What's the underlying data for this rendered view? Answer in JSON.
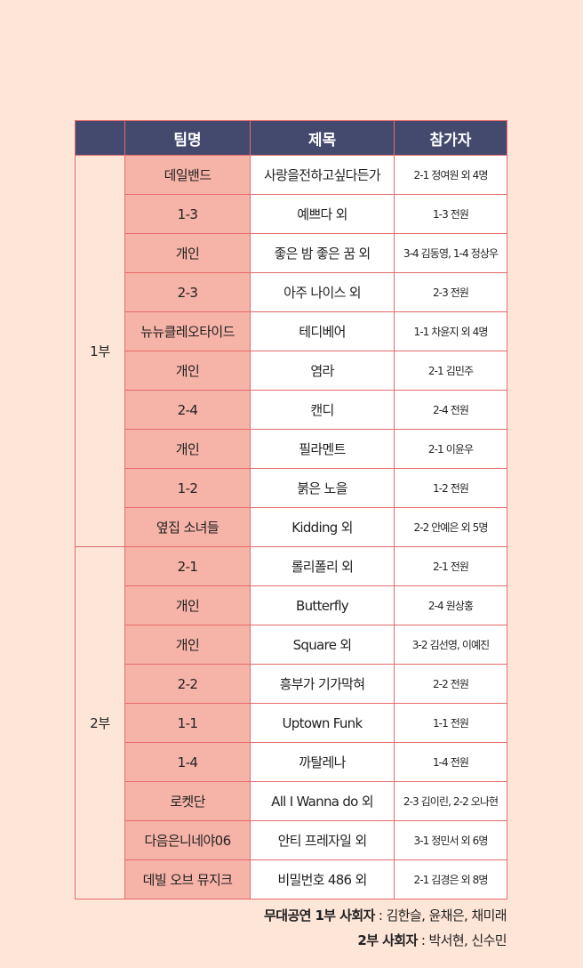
{
  "table": {
    "headers": {
      "team": "팀명",
      "title": "제목",
      "participants": "참가자"
    },
    "sections": [
      {
        "label": "1부",
        "rows": [
          {
            "team": "데일밴드",
            "title": "사랑을전하고싶다든가",
            "participants": "2-1 정여원 외 4명"
          },
          {
            "team": "1-3",
            "title": "예쁘다 외",
            "participants": "1-3 전원"
          },
          {
            "team": "개인",
            "title": "좋은 밤 좋은 꿈 외",
            "participants": "3-4 김동영, 1-4 정상우"
          },
          {
            "team": "2-3",
            "title": "아주 나이스 외",
            "participants": "2-3 전원"
          },
          {
            "team": "뉴뉴클레오타이드",
            "title": "테디베어",
            "participants": "1-1 차윤지 외 4명"
          },
          {
            "team": "개인",
            "title": "염라",
            "participants": "2-1 김민주"
          },
          {
            "team": "2-4",
            "title": "캔디",
            "participants": "2-4 전원"
          },
          {
            "team": "개인",
            "title": "필라멘트",
            "participants": "2-1 이윤우"
          },
          {
            "team": "1-2",
            "title": "붉은 노을",
            "participants": "1-2 전원"
          },
          {
            "team": "옆집 소녀들",
            "title": "Kidding 외",
            "participants": "2-2 안예은 외 5명"
          }
        ]
      },
      {
        "label": "2부",
        "rows": [
          {
            "team": "2-1",
            "title": "롤리폴리 외",
            "participants": "2-1 전원"
          },
          {
            "team": "개인",
            "title": "Butterfly",
            "participants": "2-4 원상홍"
          },
          {
            "team": "개인",
            "title": "Square 외",
            "participants": "3-2 김선영, 이예진"
          },
          {
            "team": "2-2",
            "title": "흥부가 기가막혀",
            "participants": "2-2 전원"
          },
          {
            "team": "1-1",
            "title": "Uptown Funk",
            "participants": "1-1 전원"
          },
          {
            "team": "1-4",
            "title": "까탈레나",
            "participants": "1-4 전원"
          },
          {
            "team": "로켓단",
            "title": "All I Wanna do 외",
            "participants": "2-3 김이린, 2-2 오나현"
          },
          {
            "team": "다음은니네야06",
            "title": "안티 프레자일 외",
            "participants": "3-1 정민서 외 6명"
          },
          {
            "team": "데빌 오브 뮤지크",
            "title": "비밀번호 486 외",
            "participants": "2-1 김경은 외 8명"
          }
        ]
      }
    ]
  },
  "hosts": {
    "part1_label": "무대공연 1부 사회자",
    "part1_names": " : 김한슬, 윤채은, 채미래",
    "part2_label": "2부 사회자",
    "part2_names": " : 박서현, 신수민"
  },
  "colors": {
    "background": "#fde5d8",
    "header_bg": "#434a6e",
    "team_cell_bg": "#f6b3a7",
    "border": "#e46b6b"
  }
}
